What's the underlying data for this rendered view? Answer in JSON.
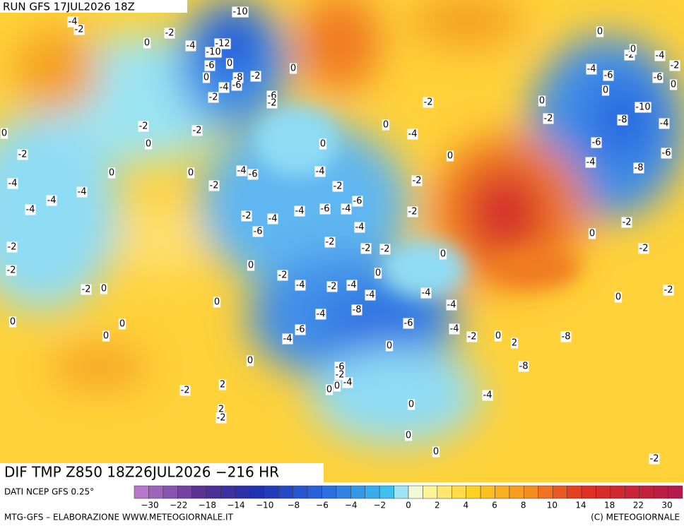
{
  "header": {
    "run": "RUN GFS 17JUL2026 18Z"
  },
  "map": {
    "contour_labels": [
      "-10",
      "-4",
      "-2",
      "-2",
      "0",
      "-4",
      "-12",
      "-10",
      "-6",
      "0",
      "-8",
      "-2",
      "0",
      "0",
      "-4",
      "-6",
      "-6",
      "-2",
      "-2",
      "0",
      "-2",
      "0",
      "-4",
      "-2",
      "-4",
      "-6",
      "-6",
      "0",
      "0",
      "-2",
      "0",
      "-10",
      "-2",
      "-8",
      "-4",
      "-2",
      "-2",
      "0",
      "-4",
      "0",
      "0",
      "0",
      "-6",
      "-6",
      "-2",
      "0",
      "-4",
      "-8",
      "-4",
      "-6",
      "0",
      "0",
      "-4",
      "-4",
      "-2",
      "-2",
      "-2",
      "-4",
      "-4",
      "-4",
      "-6",
      "-6",
      "-4",
      "-4",
      "-4",
      "-2",
      "-2",
      "-4",
      "-6",
      "-2",
      "0",
      "-2",
      "-2",
      "-2",
      "-2",
      "-2",
      "0",
      "0",
      "-2",
      "-2",
      "0",
      "-2",
      "0",
      "-4",
      "-2",
      "-4",
      "-4",
      "-4",
      "-2",
      "0",
      "0",
      "-4",
      "-4",
      "-8",
      "0",
      "0",
      "-6",
      "-6",
      "-4",
      "-2",
      "0",
      "-4",
      "2",
      "0",
      "-8",
      "0",
      "0",
      "-8",
      "-6",
      "-2",
      "-4",
      "0",
      "0",
      "2",
      "-2",
      "-4",
      "0",
      "2",
      "-2",
      "0",
      "0",
      "-2"
    ]
  },
  "footer": {
    "product": "DIF TMP Z850 18Z26JUL2026 −216 HR",
    "source": "DATI NCEP GFS 0.25°",
    "scale_labels": [
      "−30",
      "−22",
      "−18",
      "−14",
      "−10",
      "−8",
      "−6",
      "−4",
      "−2",
      "0",
      "2",
      "4",
      "6",
      "8",
      "10",
      "14",
      "18",
      "22",
      "30"
    ],
    "credit_left": "MTG-GFS – ELABORAZIONE WWW.METEOGIORNALE.IT",
    "credit_right": "(C) METEOGIORNALE"
  }
}
